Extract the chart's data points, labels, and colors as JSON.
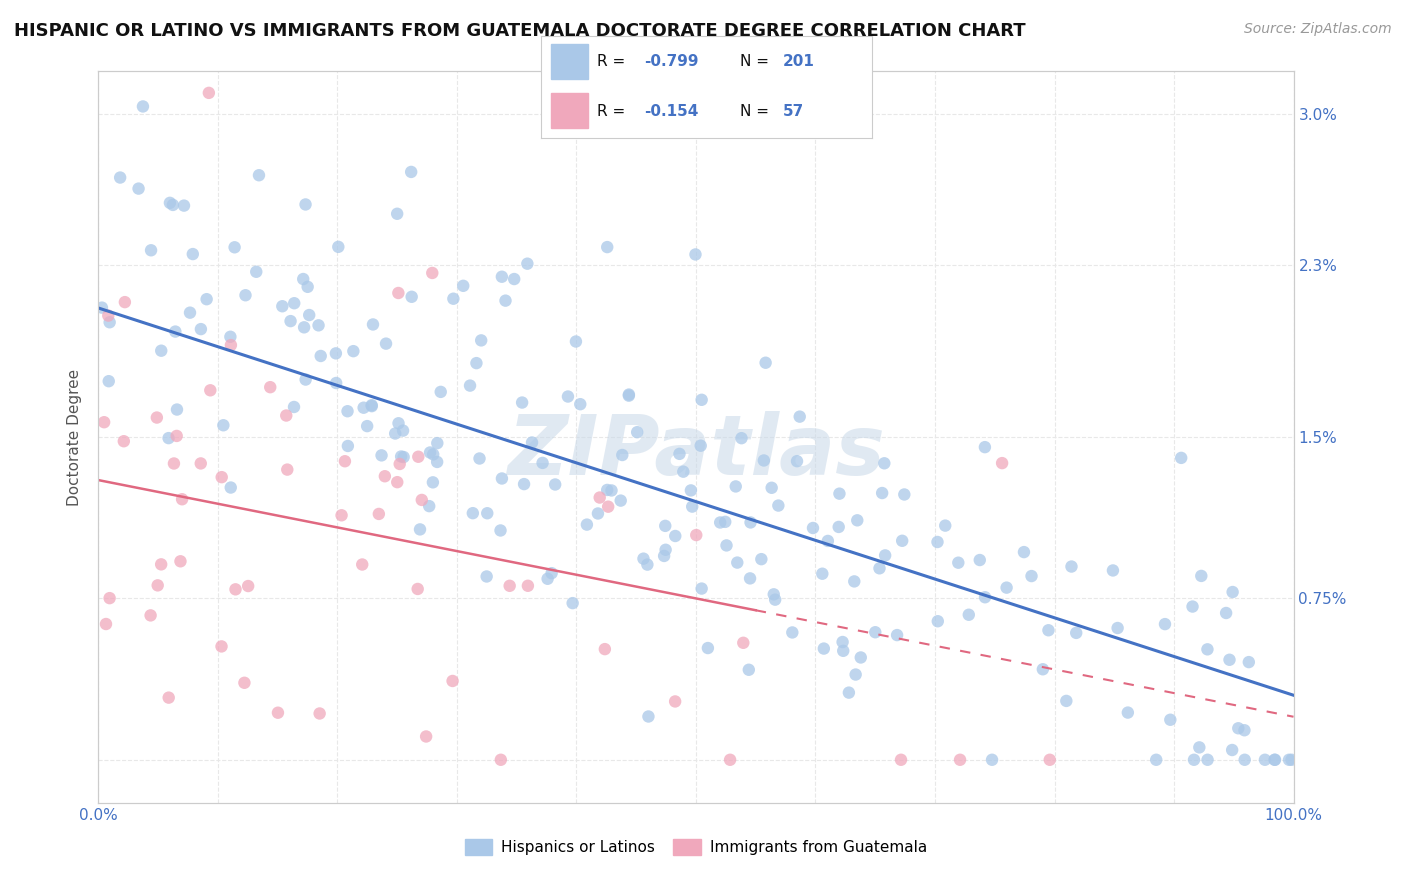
{
  "title": "HISPANIC OR LATINO VS IMMIGRANTS FROM GUATEMALA DOCTORATE DEGREE CORRELATION CHART",
  "source": "Source: ZipAtlas.com",
  "ylabel": "Doctorate Degree",
  "xlim": [
    0.0,
    1.0
  ],
  "ylim": [
    -0.002,
    0.032
  ],
  "ytick_vals": [
    0.0,
    0.0075,
    0.015,
    0.023,
    0.03
  ],
  "ytick_labels": [
    "",
    "0.75%",
    "1.5%",
    "2.3%",
    "3.0%"
  ],
  "background_color": "#ffffff",
  "grid_color": "#e8e8e8",
  "dot_color_blue": "#aac8e8",
  "dot_color_pink": "#f0a8bc",
  "line_color_blue": "#4472c4",
  "line_color_pink": "#e06880",
  "watermark": "ZIPatlas",
  "legend_blue_label": "Hispanics or Latinos",
  "legend_pink_label": "Immigrants from Guatemala",
  "R1": "-0.799",
  "N1": "201",
  "R2": "-0.154",
  "N2": "57"
}
